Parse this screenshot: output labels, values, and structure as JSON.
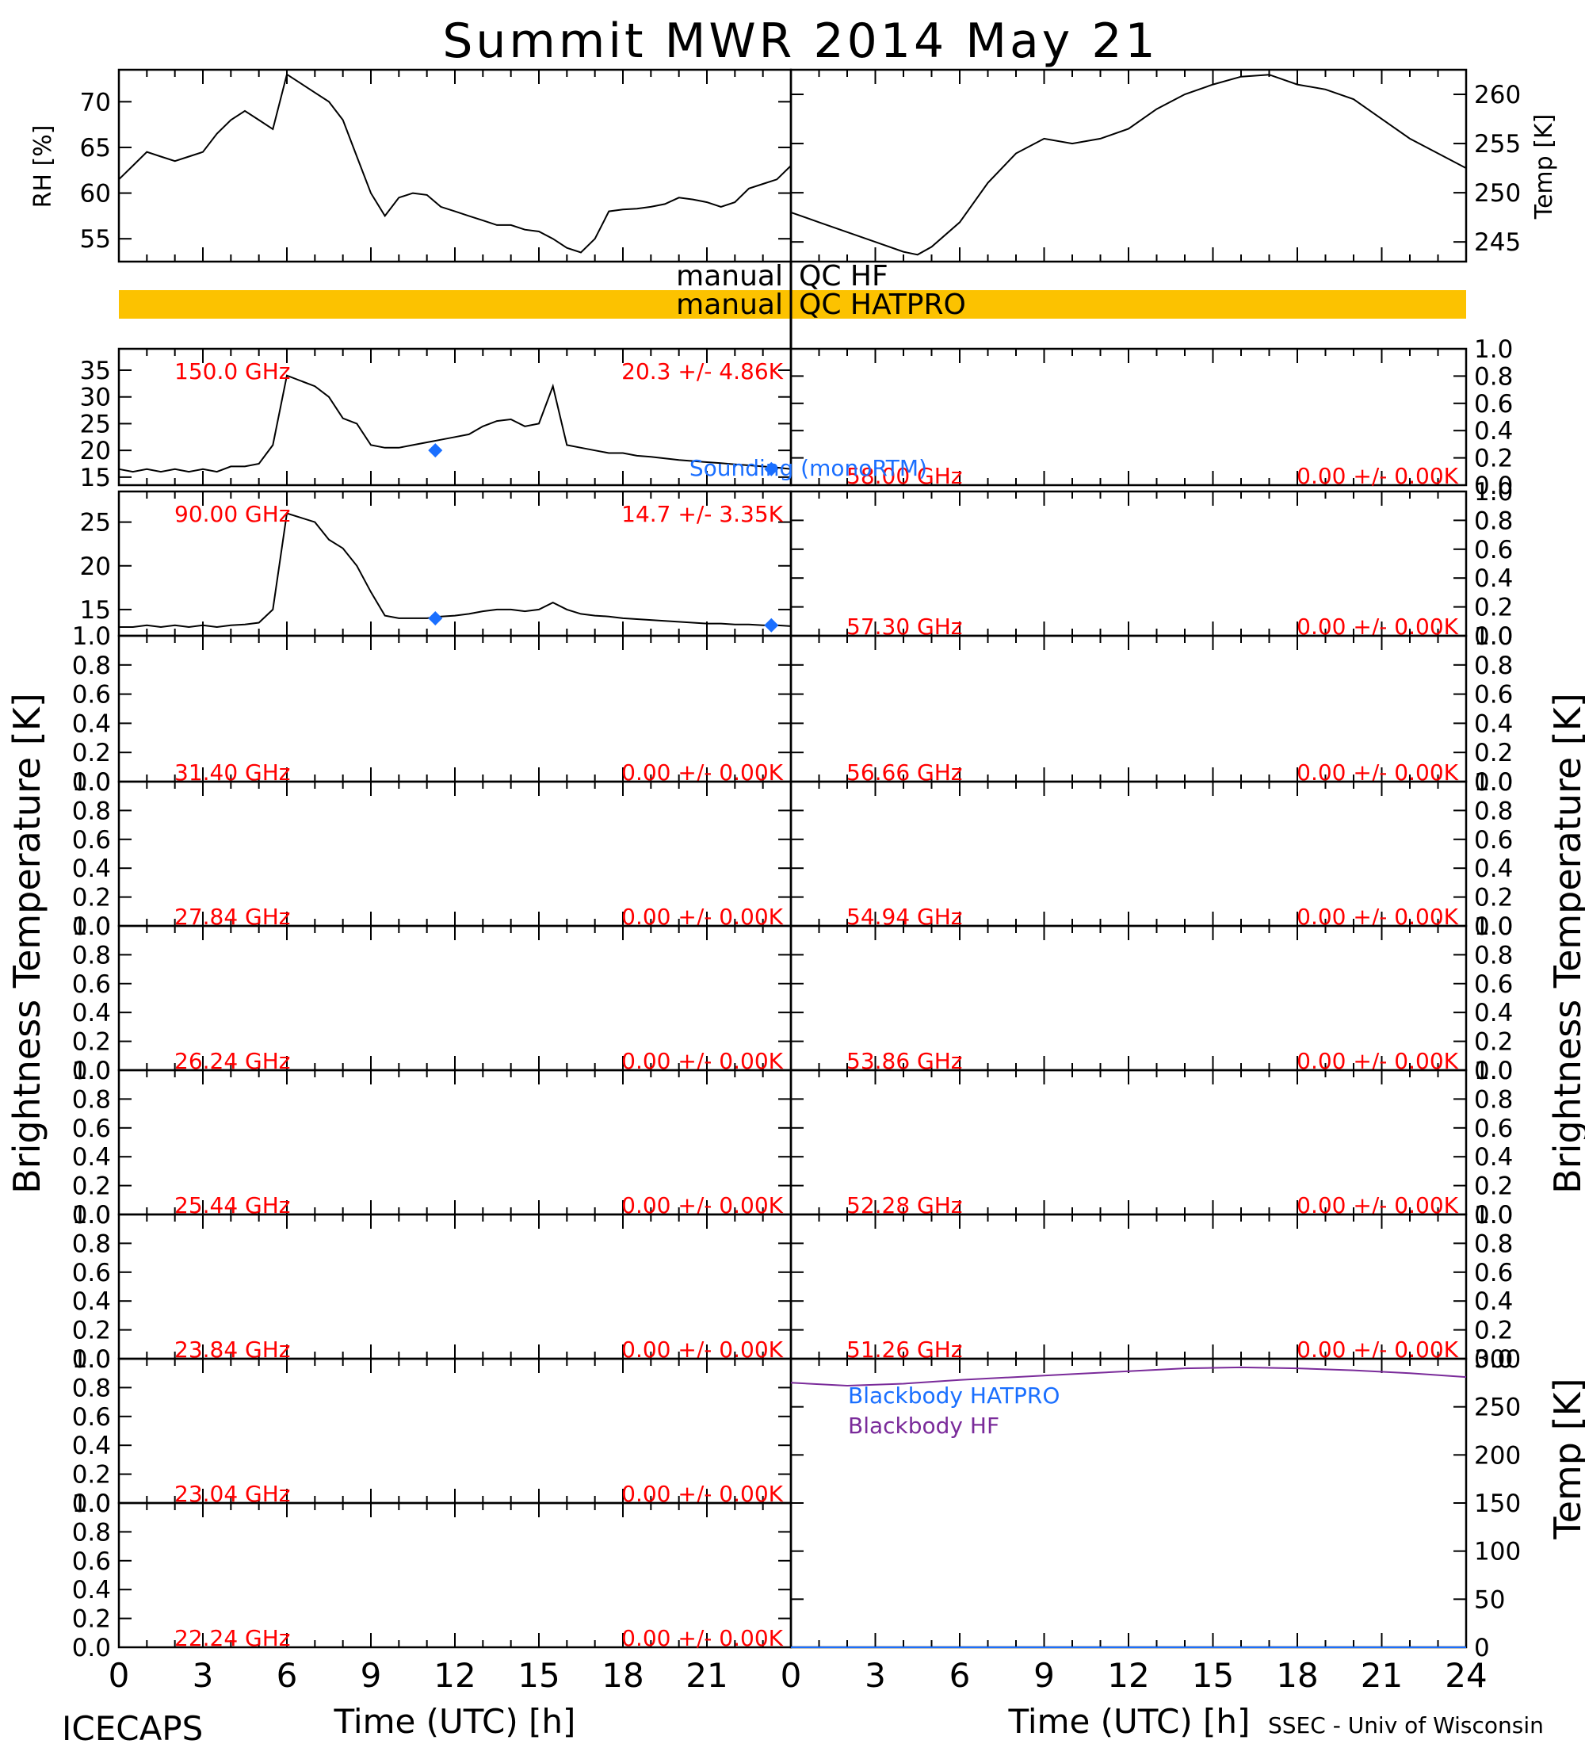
{
  "title": "Summit MWR 2014 May 21",
  "footer": {
    "left": "ICECAPS",
    "right": "SSEC - Univ of Wisconsin"
  },
  "colors": {
    "axis": "#000000",
    "channel_label": "#ff0000",
    "sounding": "#1a6fff",
    "qc_bar": "#fcc200",
    "blackbody_hf": "#7a2b9a"
  },
  "qc": {
    "hf_label": "manual QC HF",
    "hatpro_label": "manual QC HATPRO"
  },
  "axes": {
    "time_label": "Time (UTC) [h]",
    "time_ticks": [
      "0",
      "3",
      "6",
      "9",
      "12",
      "15",
      "18",
      "21",
      "24"
    ],
    "brightness_label": "Brightness Temperature [K]",
    "rh_label": "RH [%]",
    "temp_label": "Temp [K]",
    "unit_ticks": [
      "0.0",
      "0.2",
      "0.4",
      "0.6",
      "0.8",
      "1.0"
    ]
  },
  "legend": {
    "sounding": "Sounding (monoRTM)",
    "bb_hatpro": "Blackbody HATPRO",
    "bb_hf": "Blackbody HF"
  },
  "chart_data": [
    {
      "type": "line",
      "panel": "rh",
      "ylabel": "RH [%]",
      "ylim": [
        52.5,
        73.5
      ],
      "yticks": [
        55,
        60,
        65,
        70
      ],
      "xlim": [
        0,
        24
      ],
      "x": [
        0,
        0.5,
        1,
        1.5,
        2,
        2.5,
        3,
        3.5,
        4,
        4.5,
        5,
        5.5,
        6,
        6.5,
        7,
        7.5,
        8,
        8.5,
        9,
        9.5,
        10,
        10.5,
        11,
        11.5,
        12,
        12.5,
        13,
        13.5,
        14,
        14.5,
        15,
        15.5,
        16,
        16.5,
        17,
        17.5,
        18,
        18.5,
        19,
        19.5,
        20,
        20.5,
        21,
        21.5,
        22,
        22.5,
        23,
        23.5,
        24
      ],
      "values": [
        61.5,
        63,
        64.5,
        64,
        63.5,
        64,
        64.5,
        66.5,
        68,
        69,
        68,
        67,
        73,
        72,
        71,
        70,
        68,
        64,
        60,
        57.5,
        59.5,
        60,
        59.8,
        58.5,
        58,
        57.5,
        57,
        56.5,
        56.5,
        56,
        55.8,
        55,
        54,
        53.5,
        55,
        58,
        58.2,
        58.3,
        58.5,
        58.8,
        59.5,
        59.3,
        59,
        58.5,
        59,
        60.5,
        61,
        61.5,
        63
      ]
    },
    {
      "type": "line",
      "panel": "temp",
      "ylabel": "Temp [K]",
      "ylim": [
        243,
        262.5
      ],
      "yticks": [
        245,
        250,
        255,
        260
      ],
      "xlim": [
        0,
        24
      ],
      "x": [
        0,
        1,
        2,
        3,
        4,
        4.5,
        5,
        6,
        7,
        8,
        9,
        10,
        11,
        12,
        13,
        14,
        15,
        16,
        17,
        18,
        19,
        20,
        21,
        22,
        23,
        24
      ],
      "values": [
        248,
        247,
        246,
        245,
        244,
        243.7,
        244.5,
        247,
        251,
        254,
        255.5,
        255,
        255.5,
        256.5,
        258.5,
        260,
        261,
        261.8,
        262,
        261,
        260.5,
        259.5,
        257.5,
        255.5,
        254,
        252.5
      ]
    },
    {
      "type": "line",
      "panel": "150.0 GHz",
      "channel": "150.0 GHz",
      "stats": "20.3 +/-  4.86K",
      "ylim": [
        13.5,
        39
      ],
      "yticks": [
        15,
        20,
        25,
        30,
        35
      ],
      "xlim": [
        0,
        24
      ],
      "x": [
        0,
        0.5,
        1,
        1.5,
        2,
        2.5,
        3,
        3.5,
        4,
        4.5,
        5,
        5.5,
        6,
        6.5,
        7,
        7.5,
        8,
        8.5,
        9,
        9.5,
        10,
        10.5,
        11,
        11.5,
        12,
        12.5,
        13,
        13.5,
        14,
        14.5,
        15,
        15.5,
        16,
        16.5,
        17,
        17.5,
        18,
        18.5,
        19,
        19.5,
        20,
        20.5,
        21,
        21.5,
        22,
        22.5,
        23,
        23.5,
        24
      ],
      "values": [
        16.5,
        16,
        16.5,
        16,
        16.5,
        16,
        16.5,
        16,
        17,
        17,
        17.5,
        21,
        34,
        33,
        32,
        30,
        26,
        25,
        21,
        20.5,
        20.5,
        21,
        21.5,
        22,
        22.5,
        23,
        24.5,
        25.5,
        25.8,
        24.5,
        25,
        32,
        21,
        20.5,
        20,
        19.5,
        19.5,
        19,
        18.8,
        18.5,
        18.2,
        18,
        17.8,
        17.6,
        17.4,
        17.2,
        17,
        16.8,
        16.5
      ],
      "sounding": {
        "x": [
          11.3,
          23.3
        ],
        "values": [
          20,
          16.5
        ]
      }
    },
    {
      "type": "line",
      "panel": "90.00 GHz",
      "channel": "90.00 GHz",
      "stats": "14.7 +/-  3.35K",
      "ylim": [
        12,
        28.5
      ],
      "yticks": [
        15,
        20,
        25
      ],
      "xlim": [
        0,
        24
      ],
      "x": [
        0,
        0.5,
        1,
        1.5,
        2,
        2.5,
        3,
        3.5,
        4,
        4.5,
        5,
        5.5,
        6,
        6.5,
        7,
        7.5,
        8,
        8.5,
        9,
        9.5,
        10,
        10.5,
        11,
        11.5,
        12,
        12.5,
        13,
        13.5,
        14,
        14.5,
        15,
        15.5,
        16,
        16.5,
        17,
        17.5,
        18,
        18.5,
        19,
        19.5,
        20,
        20.5,
        21,
        21.5,
        22,
        22.5,
        23,
        23.5,
        24
      ],
      "values": [
        13,
        13,
        13.2,
        13,
        13.2,
        13,
        13.2,
        13,
        13.2,
        13.3,
        13.5,
        15,
        26,
        25.5,
        25,
        23,
        22,
        20,
        17,
        14.3,
        14,
        14,
        14,
        14.2,
        14.3,
        14.5,
        14.8,
        15,
        15,
        14.8,
        15,
        15.8,
        15,
        14.5,
        14.3,
        14.2,
        14,
        13.9,
        13.8,
        13.7,
        13.6,
        13.5,
        13.4,
        13.4,
        13.3,
        13.3,
        13.2,
        13.2,
        13.1
      ],
      "sounding": {
        "x": [
          11.3,
          23.3
        ],
        "values": [
          14,
          13.2
        ]
      }
    },
    {
      "type": "line",
      "panel": "58.00 GHz",
      "channel": "58.00 GHz",
      "stats": "0.00 +/-  0.00K",
      "ylim": [
        0,
        1
      ]
    },
    {
      "type": "line",
      "panel": "57.30 GHz",
      "channel": "57.30 GHz",
      "stats": "0.00 +/-  0.00K",
      "ylim": [
        0,
        1
      ]
    },
    {
      "type": "line",
      "panel": "31.40 GHz",
      "channel": "31.40 GHz",
      "stats": "0.00 +/-  0.00K",
      "ylim": [
        0,
        1
      ]
    },
    {
      "type": "line",
      "panel": "56.66 GHz",
      "channel": "56.66 GHz",
      "stats": "0.00 +/-  0.00K",
      "ylim": [
        0,
        1
      ]
    },
    {
      "type": "line",
      "panel": "27.84 GHz",
      "channel": "27.84 GHz",
      "stats": "0.00 +/-  0.00K",
      "ylim": [
        0,
        1
      ]
    },
    {
      "type": "line",
      "panel": "54.94 GHz",
      "channel": "54.94 GHz",
      "stats": "0.00 +/-  0.00K",
      "ylim": [
        0,
        1
      ]
    },
    {
      "type": "line",
      "panel": "26.24 GHz",
      "channel": "26.24 GHz",
      "stats": "0.00 +/-  0.00K",
      "ylim": [
        0,
        1
      ]
    },
    {
      "type": "line",
      "panel": "53.86 GHz",
      "channel": "53.86 GHz",
      "stats": "0.00 +/-  0.00K",
      "ylim": [
        0,
        1
      ]
    },
    {
      "type": "line",
      "panel": "25.44 GHz",
      "channel": "25.44 GHz",
      "stats": "0.00 +/-  0.00K",
      "ylim": [
        0,
        1
      ]
    },
    {
      "type": "line",
      "panel": "52.28 GHz",
      "channel": "52.28 GHz",
      "stats": "0.00 +/-  0.00K",
      "ylim": [
        0,
        1
      ]
    },
    {
      "type": "line",
      "panel": "23.84 GHz",
      "channel": "23.84 GHz",
      "stats": "0.00 +/-  0.00K",
      "ylim": [
        0,
        1
      ]
    },
    {
      "type": "line",
      "panel": "51.26 GHz",
      "channel": "51.26 GHz",
      "stats": "0.00 +/-  0.00K",
      "ylim": [
        0,
        1
      ]
    },
    {
      "type": "line",
      "panel": "23.04 GHz",
      "channel": "23.04 GHz",
      "stats": "0.00 +/-  0.00K",
      "ylim": [
        0,
        1
      ]
    },
    {
      "type": "line",
      "panel": "22.24 GHz",
      "channel": "22.24 GHz",
      "stats": "0.00 +/-  0.00K",
      "ylim": [
        0,
        1
      ]
    },
    {
      "type": "line",
      "panel": "blackbody",
      "ylabel": "Temp [K]",
      "ylim": [
        0,
        300
      ],
      "yticks": [
        0,
        50,
        100,
        150,
        200,
        250,
        300
      ],
      "xlim": [
        0,
        24
      ],
      "series": [
        {
          "name": "Blackbody HATPRO",
          "x": [
            0,
            24
          ],
          "values": [
            0,
            0
          ]
        },
        {
          "name": "Blackbody HF",
          "x": [
            0,
            2,
            4,
            6,
            8,
            10,
            12,
            14,
            16,
            18,
            20,
            22,
            24
          ],
          "values": [
            275,
            272,
            274,
            278,
            281,
            284,
            287,
            290,
            291,
            290,
            288,
            285,
            281
          ]
        }
      ]
    }
  ]
}
